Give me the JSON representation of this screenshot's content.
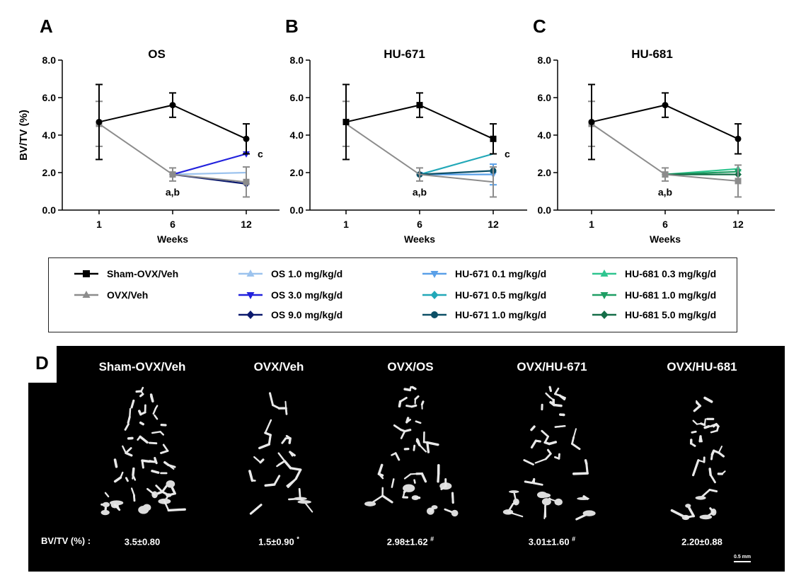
{
  "chart_data": [
    {
      "type": "line",
      "panel_letter": "A",
      "title": "OS",
      "xlabel": "Weeks",
      "ylabel": "BV/TV (%)",
      "categories": [
        "1",
        "6",
        "12"
      ],
      "yticks": [
        "0.0",
        "2.0",
        "4.0",
        "6.0",
        "8.0"
      ],
      "ylim": [
        0,
        8
      ],
      "annotations": [
        "a,b",
        "c"
      ],
      "series": [
        {
          "name": "Sham-OVX/Veh",
          "color": "#000000",
          "marker": "circle",
          "values": [
            4.7,
            5.6,
            3.8
          ],
          "err": [
            2.0,
            0.65,
            0.8
          ]
        },
        {
          "name": "OVX/Veh",
          "color": "#8c8c8c",
          "marker": "square",
          "values": [
            4.6,
            1.9,
            1.5
          ],
          "err": [
            1.2,
            0.35,
            0.8
          ]
        },
        {
          "name": "OS 1.0 mg/kg/d",
          "color": "#9cc3ee",
          "marker": "none",
          "values": [
            null,
            1.9,
            2.0
          ],
          "err": [
            0,
            0,
            0
          ]
        },
        {
          "name": "OS 3.0 mg/kg/d",
          "color": "#2222dd",
          "marker": "triangle-down",
          "values": [
            null,
            1.9,
            3.0
          ],
          "err": [
            0,
            0,
            0
          ]
        },
        {
          "name": "OS 9.0 mg/kg/d",
          "color": "#0c1a6e",
          "marker": "diamond",
          "values": [
            null,
            1.9,
            1.4
          ],
          "err": [
            0,
            0,
            0
          ]
        }
      ]
    },
    {
      "type": "line",
      "panel_letter": "B",
      "title": "HU-671",
      "xlabel": "Weeks",
      "ylabel": "",
      "categories": [
        "1",
        "6",
        "12"
      ],
      "yticks": [
        "0.0",
        "2.0",
        "4.0",
        "6.0",
        "8.0"
      ],
      "ylim": [
        0,
        8
      ],
      "annotations": [
        "a,b",
        "c"
      ],
      "series": [
        {
          "name": "Sham-OVX/Veh",
          "color": "#000000",
          "marker": "square",
          "values": [
            4.7,
            5.6,
            3.8
          ],
          "err": [
            2.0,
            0.65,
            0.8
          ]
        },
        {
          "name": "OVX/Veh",
          "color": "#8c8c8c",
          "marker": "none",
          "values": [
            4.6,
            1.9,
            1.5
          ],
          "err": [
            1.2,
            0.35,
            0.8
          ]
        },
        {
          "name": "HU-671 0.1 mg/kg/d",
          "color": "#5aa0e8",
          "marker": "triangle-down",
          "values": [
            null,
            1.9,
            1.9
          ],
          "err": [
            0,
            0,
            0.55
          ]
        },
        {
          "name": "HU-671 0.5 mg/kg/d",
          "color": "#22a8b8",
          "marker": "none",
          "values": [
            null,
            1.9,
            3.0
          ],
          "err": [
            0,
            0,
            0
          ]
        },
        {
          "name": "HU-671 1.0 mg/kg/d",
          "color": "#0c4f66",
          "marker": "circle",
          "values": [
            null,
            1.9,
            2.1
          ],
          "err": [
            0,
            0,
            0
          ]
        }
      ]
    },
    {
      "type": "line",
      "panel_letter": "C",
      "title": "HU-681",
      "xlabel": "Weeks",
      "ylabel": "",
      "categories": [
        "1",
        "6",
        "12"
      ],
      "yticks": [
        "0.0",
        "2.0",
        "4.0",
        "6.0",
        "8.0"
      ],
      "ylim": [
        0,
        8
      ],
      "annotations": [
        "a,b"
      ],
      "series": [
        {
          "name": "Sham-OVX/Veh",
          "color": "#000000",
          "marker": "circle",
          "values": [
            4.7,
            5.6,
            3.8
          ],
          "err": [
            2.0,
            0.65,
            0.8
          ]
        },
        {
          "name": "OVX/Veh",
          "color": "#8c8c8c",
          "marker": "square",
          "values": [
            4.6,
            1.9,
            1.55
          ],
          "err": [
            1.2,
            0.35,
            0.85
          ]
        },
        {
          "name": "HU-681 0.3 mg/kg/d",
          "color": "#2fc58f",
          "marker": "triangle-up",
          "values": [
            null,
            1.9,
            2.2
          ],
          "err": [
            0,
            0,
            0
          ]
        },
        {
          "name": "HU-681 1.0 mg/kg/d",
          "color": "#1f9e64",
          "marker": "triangle-down",
          "values": [
            null,
            1.9,
            2.05
          ],
          "err": [
            0,
            0,
            0
          ]
        },
        {
          "name": "HU-681 5.0 mg/kg/d",
          "color": "#156e48",
          "marker": "diamond",
          "values": [
            null,
            1.9,
            1.9
          ],
          "err": [
            0,
            0,
            0
          ]
        }
      ]
    }
  ],
  "legend": {
    "items": [
      {
        "label": "Sham-OVX/Veh",
        "color": "#000000",
        "marker": "square"
      },
      {
        "label": "OVX/Veh",
        "color": "#8c8c8c",
        "marker": "triangle-up"
      },
      {
        "label": "OS 1.0 mg/kg/d",
        "color": "#9cc3ee",
        "marker": "triangle-up"
      },
      {
        "label": "OS 3.0 mg/kg/d",
        "color": "#2222dd",
        "marker": "triangle-down"
      },
      {
        "label": "OS 9.0 mg/kg/d",
        "color": "#0c1a6e",
        "marker": "diamond"
      },
      {
        "label": "HU-671 0.1 mg/kg/d",
        "color": "#5aa0e8",
        "marker": "triangle-down"
      },
      {
        "label": "HU-671 0.5 mg/kg/d",
        "color": "#22a8b8",
        "marker": "diamond"
      },
      {
        "label": "HU-671 1.0 mg/kg/d",
        "color": "#0c4f66",
        "marker": "circle"
      },
      {
        "label": "HU-681 0.3 mg/kg/d",
        "color": "#2fc58f",
        "marker": "triangle-up"
      },
      {
        "label": "HU-681 1.0 mg/kg/d",
        "color": "#1f9e64",
        "marker": "triangle-down"
      },
      {
        "label": "HU-681 5.0 mg/kg/d",
        "color": "#156e48",
        "marker": "diamond"
      }
    ]
  },
  "panel_d": {
    "letter": "D",
    "titles": [
      "Sham-OVX/Veh",
      "OVX/Veh",
      "OVX/OS",
      "OVX/HU-671",
      "OVX/HU-681"
    ],
    "value_label": "BV/TV (%) :",
    "values": [
      "3.5±0.80",
      "1.5±0.90",
      "2.98±1.62",
      "3.01±1.60",
      "2.20±0.88"
    ],
    "value_marks": [
      "",
      "*",
      "#",
      "#",
      ""
    ],
    "scale_bar": "0.5 mm"
  }
}
